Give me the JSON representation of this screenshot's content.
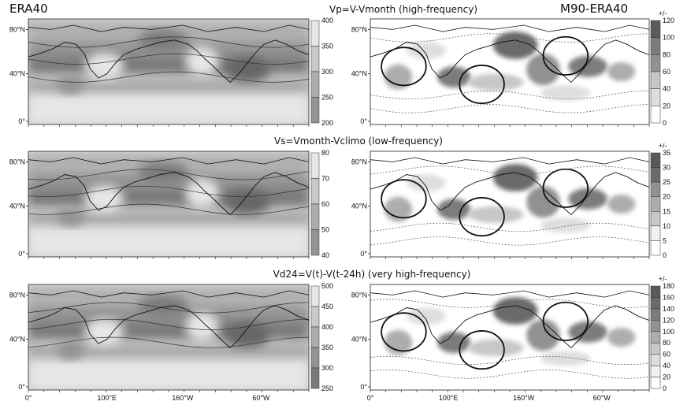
{
  "figure": {
    "left_header": "ERA40",
    "right_header": "M90-ERA40"
  },
  "chart_data": [
    {
      "type": "heatmap",
      "row_title": "Vp=V-Vmonth (high-frequency)",
      "left_panel": {
        "colorbar": {
          "ticks": [
            "400",
            "350",
            "300",
            "250",
            "200"
          ],
          "range": [
            200,
            400
          ]
        }
      },
      "right_panel": {
        "colorbar": {
          "unit": "+/-",
          "ticks": [
            "120",
            "100",
            "80",
            "60",
            "40",
            "20",
            "0"
          ],
          "range": [
            0,
            120
          ]
        }
      },
      "yticks": [
        "80°N",
        "40°N",
        "0°"
      ]
    },
    {
      "type": "heatmap",
      "row_title": "Vs=Vmonth-Vclimo (low-frequency)",
      "left_panel": {
        "colorbar": {
          "ticks": [
            "80",
            "70",
            "60",
            "50",
            "40"
          ],
          "range": [
            40,
            80
          ]
        }
      },
      "right_panel": {
        "colorbar": {
          "unit": "+/-",
          "ticks": [
            "35",
            "30",
            "25",
            "20",
            "15",
            "10",
            "5",
            "0"
          ],
          "range": [
            0,
            35
          ]
        }
      },
      "yticks": [
        "80°N",
        "40°N",
        "0°"
      ]
    },
    {
      "type": "heatmap",
      "row_title": "Vd24=V(t)-V(t-24h)  (very high-frequency)",
      "left_panel": {
        "colorbar": {
          "ticks": [
            "500",
            "450",
            "400",
            "350",
            "300",
            "250"
          ],
          "range": [
            250,
            500
          ]
        }
      },
      "right_panel": {
        "colorbar": {
          "unit": "+/-",
          "ticks": [
            "180",
            "160",
            "140",
            "120",
            "100",
            "80",
            "60",
            "40",
            "20",
            "0"
          ],
          "range": [
            0,
            180
          ]
        }
      },
      "yticks": [
        "80°N",
        "40°N",
        "0°"
      ],
      "xticks": [
        "0°",
        "100°E",
        "160°W",
        "60°W"
      ]
    }
  ]
}
